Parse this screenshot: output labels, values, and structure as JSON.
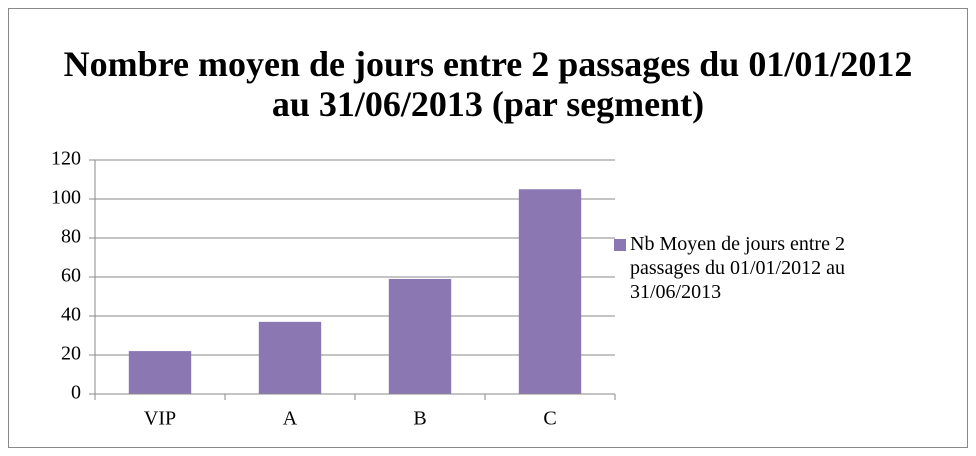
{
  "chart_data": {
    "type": "bar",
    "title": "Nombre moyen de jours entre 2 passages du 01/01/2012 au 31/06/2013 (par segment)",
    "categories": [
      "VIP",
      "A",
      "B",
      "C"
    ],
    "series": [
      {
        "name": "Nb Moyen de jours entre 2 passages du 01/01/2012 au 31/06/2013",
        "color": "#8b78b3",
        "values": [
          22,
          37,
          59,
          105
        ]
      }
    ],
    "ylim": [
      0,
      120
    ],
    "yticks": [
      0,
      20,
      40,
      60,
      80,
      100,
      120
    ],
    "grid": true,
    "legend": "right"
  }
}
